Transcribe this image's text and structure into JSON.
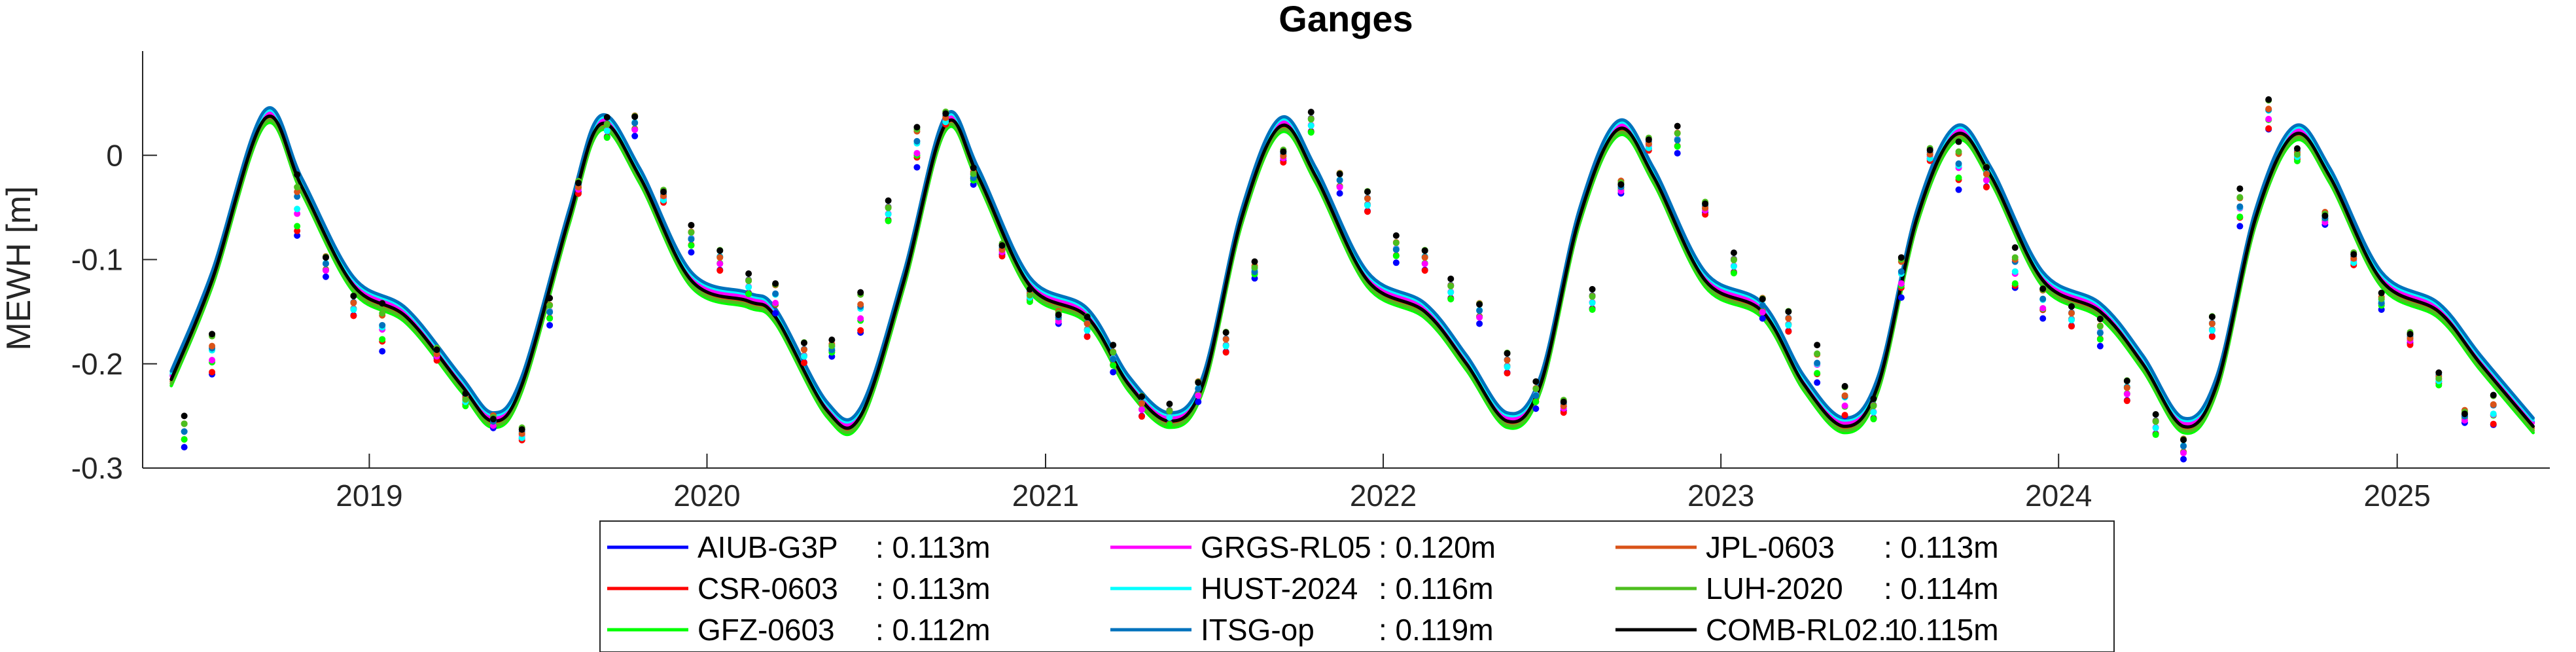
{
  "chart_data": {
    "type": "line",
    "title": "Ganges",
    "xlabel": "",
    "ylabel": "MEWH [m]",
    "xlim": [
      "2018-05-01",
      "2025-06-15"
    ],
    "ylim": [
      -0.3,
      0.1
    ],
    "xticks": [
      "2019",
      "2020",
      "2021",
      "2022",
      "2023",
      "2024",
      "2025"
    ],
    "yticks": [
      -0.3,
      -0.2,
      -0.1,
      0
    ],
    "ytick_labels": [
      "-0.3",
      "-0.2",
      "-0.1",
      "0"
    ],
    "grid": false,
    "legend_position": "bottom",
    "legend_columns": 3,
    "series": [
      {
        "name": "AIUB-G3P",
        "rms": ": 0.113m",
        "color": "#0000ff",
        "offset": 0.004
      },
      {
        "name": "CSR-0603",
        "rms": ": 0.113m",
        "color": "#ff0000",
        "offset": 0.0
      },
      {
        "name": "GFZ-0603",
        "rms": ": 0.112m",
        "color": "#00ff00",
        "offset": -0.006
      },
      {
        "name": "GRGS-RL05",
        "rms": ": 0.120m",
        "color": "#ff00ff",
        "offset": 0.003
      },
      {
        "name": "HUST-2024",
        "rms": ": 0.116m",
        "color": "#00ffff",
        "offset": 0.006
      },
      {
        "name": "ITSG-op",
        "rms": ": 0.119m",
        "color": "#0072bd",
        "offset": 0.008
      },
      {
        "name": "JPL-0603",
        "rms": ": 0.113m",
        "color": "#d95319",
        "offset": -0.002
      },
      {
        "name": "LUH-2020",
        "rms": ": 0.114m",
        "color": "#4dbe1f",
        "offset": -0.004
      },
      {
        "name": "COMB-RL02.1",
        "rms": ": 0.115m",
        "color": "#000000",
        "offset": 0.0
      }
    ],
    "curve_points": [
      {
        "x": "2018-06-01",
        "y": -0.215
      },
      {
        "x": "2018-07-15",
        "y": -0.12
      },
      {
        "x": "2018-09-10",
        "y": 0.035
      },
      {
        "x": "2018-10-20",
        "y": -0.03
      },
      {
        "x": "2018-12-15",
        "y": -0.125
      },
      {
        "x": "2019-02-10",
        "y": -0.155
      },
      {
        "x": "2019-04-10",
        "y": -0.22
      },
      {
        "x": "2019-05-15",
        "y": -0.255
      },
      {
        "x": "2019-06-15",
        "y": -0.22
      },
      {
        "x": "2019-08-05",
        "y": -0.06
      },
      {
        "x": "2019-09-08",
        "y": 0.03
      },
      {
        "x": "2019-10-20",
        "y": -0.02
      },
      {
        "x": "2019-12-15",
        "y": -0.12
      },
      {
        "x": "2020-02-15",
        "y": -0.14
      },
      {
        "x": "2020-03-15",
        "y": -0.155
      },
      {
        "x": "2020-05-10",
        "y": -0.245
      },
      {
        "x": "2020-06-15",
        "y": -0.25
      },
      {
        "x": "2020-08-01",
        "y": -0.12
      },
      {
        "x": "2020-09-15",
        "y": 0.03
      },
      {
        "x": "2020-10-20",
        "y": -0.02
      },
      {
        "x": "2020-12-15",
        "y": -0.125
      },
      {
        "x": "2021-02-15",
        "y": -0.155
      },
      {
        "x": "2021-04-01",
        "y": -0.22
      },
      {
        "x": "2021-05-15",
        "y": -0.255
      },
      {
        "x": "2021-06-20",
        "y": -0.22
      },
      {
        "x": "2021-08-01",
        "y": -0.06
      },
      {
        "x": "2021-09-12",
        "y": 0.028
      },
      {
        "x": "2021-10-20",
        "y": -0.02
      },
      {
        "x": "2021-12-15",
        "y": -0.12
      },
      {
        "x": "2022-02-15",
        "y": -0.15
      },
      {
        "x": "2022-04-01",
        "y": -0.2
      },
      {
        "x": "2022-05-15",
        "y": -0.255
      },
      {
        "x": "2022-06-20",
        "y": -0.22
      },
      {
        "x": "2022-08-01",
        "y": -0.06
      },
      {
        "x": "2022-09-12",
        "y": 0.025
      },
      {
        "x": "2022-10-20",
        "y": -0.02
      },
      {
        "x": "2022-12-15",
        "y": -0.12
      },
      {
        "x": "2023-02-15",
        "y": -0.15
      },
      {
        "x": "2023-04-01",
        "y": -0.22
      },
      {
        "x": "2023-05-15",
        "y": -0.26
      },
      {
        "x": "2023-06-20",
        "y": -0.22
      },
      {
        "x": "2023-08-01",
        "y": -0.06
      },
      {
        "x": "2023-09-12",
        "y": 0.02
      },
      {
        "x": "2023-10-20",
        "y": -0.02
      },
      {
        "x": "2023-12-15",
        "y": -0.12
      },
      {
        "x": "2024-02-15",
        "y": -0.15
      },
      {
        "x": "2024-04-01",
        "y": -0.2
      },
      {
        "x": "2024-05-15",
        "y": -0.26
      },
      {
        "x": "2024-06-20",
        "y": -0.22
      },
      {
        "x": "2024-08-01",
        "y": -0.06
      },
      {
        "x": "2024-09-12",
        "y": 0.02
      },
      {
        "x": "2024-10-20",
        "y": -0.02
      },
      {
        "x": "2024-12-15",
        "y": -0.12
      },
      {
        "x": "2025-02-15",
        "y": -0.15
      },
      {
        "x": "2025-04-01",
        "y": -0.2
      },
      {
        "x": "2025-05-28",
        "y": -0.26
      }
    ],
    "observations": [
      {
        "x": "2018-06-15",
        "y": -0.265,
        "spread": 0.012
      },
      {
        "x": "2018-07-15",
        "y": -0.19,
        "spread": 0.02
      },
      {
        "x": "2018-10-15",
        "y": -0.05,
        "spread": 0.03
      },
      {
        "x": "2018-11-15",
        "y": -0.105,
        "spread": 0.01
      },
      {
        "x": "2018-12-15",
        "y": -0.145,
        "spread": 0.01
      },
      {
        "x": "2019-01-15",
        "y": -0.165,
        "spread": 0.02
      },
      {
        "x": "2019-03-15",
        "y": -0.19,
        "spread": 0.005
      },
      {
        "x": "2019-04-15",
        "y": -0.235,
        "spread": 0.005
      },
      {
        "x": "2019-05-15",
        "y": -0.255,
        "spread": 0.005
      },
      {
        "x": "2019-06-15",
        "y": -0.268,
        "spread": 0.005
      },
      {
        "x": "2019-07-15",
        "y": -0.15,
        "spread": 0.01
      },
      {
        "x": "2019-08-15",
        "y": -0.03,
        "spread": 0.005
      },
      {
        "x": "2019-09-15",
        "y": 0.025,
        "spread": 0.01
      },
      {
        "x": "2019-10-15",
        "y": 0.03,
        "spread": 0.01
      },
      {
        "x": "2019-11-15",
        "y": -0.04,
        "spread": 0.005
      },
      {
        "x": "2019-12-15",
        "y": -0.08,
        "spread": 0.01
      },
      {
        "x": "2020-01-15",
        "y": -0.1,
        "spread": 0.01
      },
      {
        "x": "2020-02-15",
        "y": -0.125,
        "spread": 0.01
      },
      {
        "x": "2020-03-15",
        "y": -0.135,
        "spread": 0.015
      },
      {
        "x": "2020-04-15",
        "y": -0.19,
        "spread": 0.01
      },
      {
        "x": "2020-05-15",
        "y": -0.185,
        "spread": 0.005
      },
      {
        "x": "2020-06-15",
        "y": -0.15,
        "spread": 0.02
      },
      {
        "x": "2020-07-15",
        "y": -0.055,
        "spread": 0.01
      },
      {
        "x": "2020-08-15",
        "y": 0.01,
        "spread": 0.02
      },
      {
        "x": "2020-09-15",
        "y": 0.035,
        "spread": 0.005
      },
      {
        "x": "2020-10-15",
        "y": -0.02,
        "spread": 0.005
      },
      {
        "x": "2020-11-15",
        "y": -0.09,
        "spread": 0.005
      },
      {
        "x": "2020-12-15",
        "y": -0.135,
        "spread": 0.005
      },
      {
        "x": "2021-01-15",
        "y": -0.155,
        "spread": 0.005
      },
      {
        "x": "2021-02-15",
        "y": -0.165,
        "spread": 0.01
      },
      {
        "x": "2021-03-15",
        "y": -0.195,
        "spread": 0.01
      },
      {
        "x": "2021-04-15",
        "y": -0.24,
        "spread": 0.01
      },
      {
        "x": "2021-05-15",
        "y": -0.25,
        "spread": 0.01
      },
      {
        "x": "2021-06-15",
        "y": -0.225,
        "spread": 0.01
      },
      {
        "x": "2021-07-15",
        "y": -0.18,
        "spread": 0.01
      },
      {
        "x": "2021-08-15",
        "y": -0.11,
        "spread": 0.005
      },
      {
        "x": "2021-09-15",
        "y": 0.0,
        "spread": 0.005
      },
      {
        "x": "2021-10-15",
        "y": 0.03,
        "spread": 0.01
      },
      {
        "x": "2021-11-15",
        "y": -0.025,
        "spread": 0.01
      },
      {
        "x": "2021-12-15",
        "y": -0.045,
        "spread": 0.01
      },
      {
        "x": "2022-01-15",
        "y": -0.09,
        "spread": 0.01
      },
      {
        "x": "2022-02-15",
        "y": -0.1,
        "spread": 0.01
      },
      {
        "x": "2022-03-15",
        "y": -0.13,
        "spread": 0.01
      },
      {
        "x": "2022-04-15",
        "y": -0.15,
        "spread": 0.01
      },
      {
        "x": "2022-05-15",
        "y": -0.2,
        "spread": 0.01
      },
      {
        "x": "2022-06-15",
        "y": -0.23,
        "spread": 0.01
      },
      {
        "x": "2022-07-15",
        "y": -0.24,
        "spread": 0.005
      },
      {
        "x": "2022-08-15",
        "y": -0.14,
        "spread": 0.01
      },
      {
        "x": "2022-09-15",
        "y": -0.03,
        "spread": 0.005
      },
      {
        "x": "2022-10-15",
        "y": 0.01,
        "spread": 0.005
      },
      {
        "x": "2022-11-15",
        "y": 0.015,
        "spread": 0.01
      },
      {
        "x": "2022-12-15",
        "y": -0.05,
        "spread": 0.005
      },
      {
        "x": "2023-01-15",
        "y": -0.105,
        "spread": 0.01
      },
      {
        "x": "2023-02-15",
        "y": -0.145,
        "spread": 0.01
      },
      {
        "x": "2023-03-15",
        "y": -0.16,
        "spread": 0.01
      },
      {
        "x": "2023-04-15",
        "y": -0.2,
        "spread": 0.015
      },
      {
        "x": "2023-05-15",
        "y": -0.235,
        "spread": 0.015
      },
      {
        "x": "2023-06-15",
        "y": -0.245,
        "spread": 0.01
      },
      {
        "x": "2023-07-15",
        "y": -0.115,
        "spread": 0.02
      },
      {
        "x": "2023-08-15",
        "y": 0.0,
        "spread": 0.005
      },
      {
        "x": "2023-09-15",
        "y": -0.01,
        "spread": 0.02
      },
      {
        "x": "2023-10-15",
        "y": -0.02,
        "spread": 0.01
      },
      {
        "x": "2023-11-15",
        "y": -0.11,
        "spread": 0.02
      },
      {
        "x": "2023-12-15",
        "y": -0.14,
        "spread": 0.015
      },
      {
        "x": "2024-01-15",
        "y": -0.155,
        "spread": 0.01
      },
      {
        "x": "2024-02-15",
        "y": -0.17,
        "spread": 0.01
      },
      {
        "x": "2024-03-15",
        "y": -0.225,
        "spread": 0.01
      },
      {
        "x": "2024-04-15",
        "y": -0.26,
        "spread": 0.01
      },
      {
        "x": "2024-05-15",
        "y": -0.28,
        "spread": 0.01
      },
      {
        "x": "2024-06-15",
        "y": -0.165,
        "spread": 0.01
      },
      {
        "x": "2024-07-15",
        "y": -0.05,
        "spread": 0.015
      },
      {
        "x": "2024-08-15",
        "y": 0.04,
        "spread": 0.015
      },
      {
        "x": "2024-09-15",
        "y": 0.0,
        "spread": 0.005
      },
      {
        "x": "2024-10-15",
        "y": -0.06,
        "spread": 0.005
      },
      {
        "x": "2024-11-15",
        "y": -0.1,
        "spread": 0.005
      },
      {
        "x": "2024-12-15",
        "y": -0.14,
        "spread": 0.005
      },
      {
        "x": "2025-01-15",
        "y": -0.175,
        "spread": 0.005
      },
      {
        "x": "2025-02-15",
        "y": -0.215,
        "spread": 0.005
      },
      {
        "x": "2025-03-15",
        "y": -0.25,
        "spread": 0.005
      },
      {
        "x": "2025-04-15",
        "y": -0.245,
        "spread": 0.015
      }
    ]
  }
}
